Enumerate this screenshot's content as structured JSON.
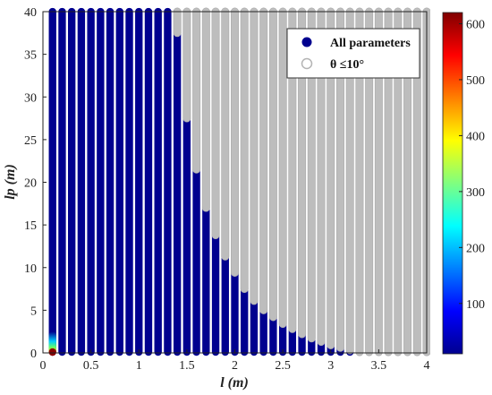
{
  "chart_data": {
    "type": "scatter",
    "title": "",
    "xlabel": "l (m)",
    "ylabel": "lp (m)",
    "xlim": [
      0,
      4
    ],
    "ylim": [
      0,
      40
    ],
    "xticks": [
      "0",
      "0.5",
      "1",
      "1.5",
      "2",
      "2.5",
      "3",
      "3.5",
      "4"
    ],
    "yticks": [
      "0",
      "5",
      "10",
      "15",
      "20",
      "25",
      "30",
      "35",
      "40"
    ],
    "grid": false,
    "legend_position": "top-right",
    "series": [
      {
        "name": "All parameters",
        "marker": "filled-circle",
        "color": "#00008f",
        "x_start": 0.1,
        "x_step": 0.1,
        "x_end": 4.0,
        "y_start": 0.1,
        "y_step": 0.1,
        "y_end": 40.0
      },
      {
        "name": "θ ≤10°",
        "marker": "open-circle",
        "color": "#b4b4b4",
        "description": "lp at or above boundary for each l",
        "boundary": [
          {
            "l": 1.4,
            "lp": 37.5
          },
          {
            "l": 1.5,
            "lp": 27.5
          },
          {
            "l": 1.6,
            "lp": 21.5
          },
          {
            "l": 1.7,
            "lp": 17.0
          },
          {
            "l": 1.8,
            "lp": 13.8
          },
          {
            "l": 1.9,
            "lp": 11.3
          },
          {
            "l": 2.0,
            "lp": 9.4
          },
          {
            "l": 2.1,
            "lp": 7.5
          },
          {
            "l": 2.2,
            "lp": 6.1
          },
          {
            "l": 2.3,
            "lp": 5.0
          },
          {
            "l": 2.4,
            "lp": 4.2
          },
          {
            "l": 2.5,
            "lp": 3.4
          },
          {
            "l": 2.6,
            "lp": 2.8
          },
          {
            "l": 2.7,
            "lp": 2.2
          },
          {
            "l": 2.8,
            "lp": 1.7
          },
          {
            "l": 2.9,
            "lp": 1.3
          },
          {
            "l": 3.0,
            "lp": 0.9
          },
          {
            "l": 3.1,
            "lp": 0.6
          },
          {
            "l": 3.2,
            "lp": 0.3
          },
          {
            "l": 3.3,
            "lp": 0.1
          },
          {
            "l": 3.4,
            "lp": 0.1
          },
          {
            "l": 3.5,
            "lp": 0.1
          },
          {
            "l": 3.6,
            "lp": 0.1
          },
          {
            "l": 3.7,
            "lp": 0.1
          },
          {
            "l": 3.8,
            "lp": 0.1
          },
          {
            "l": 3.9,
            "lp": 0.1
          },
          {
            "l": 4.0,
            "lp": 0.1
          }
        ]
      }
    ],
    "hot_spot": {
      "l": 0.1,
      "lp_max": 2.5
    },
    "colorbar": {
      "min": 10,
      "max": 620,
      "ticks": [
        "100",
        "200",
        "300",
        "400",
        "500",
        "600"
      ],
      "colormap": "jet"
    }
  }
}
